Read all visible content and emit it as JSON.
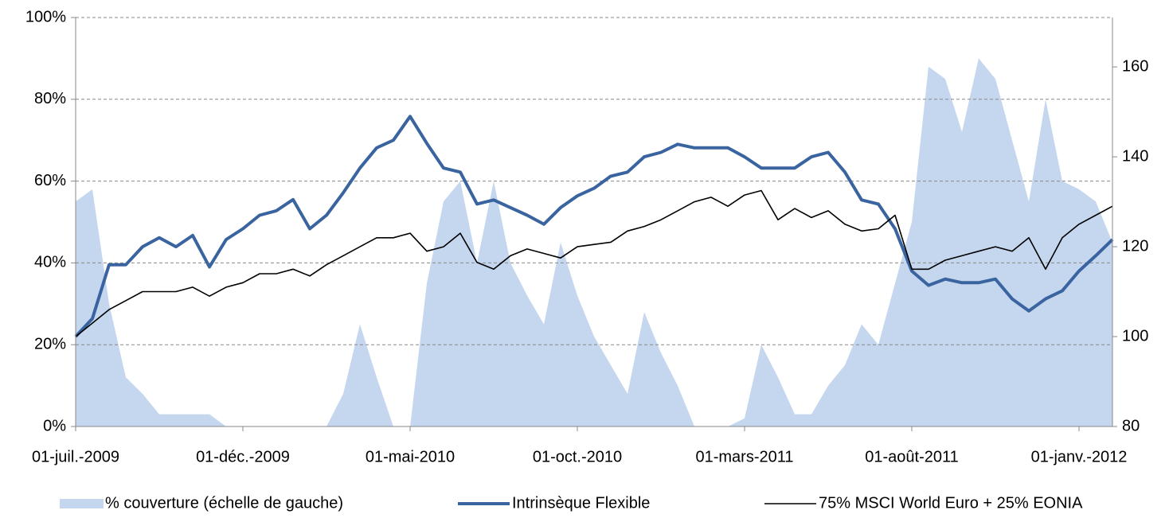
{
  "chart_data": {
    "type": "area-line",
    "categories": [
      "01-juil.-2009",
      null,
      null,
      null,
      null,
      null,
      null,
      null,
      null,
      null,
      "01-déc.-2009",
      null,
      null,
      null,
      null,
      null,
      null,
      null,
      null,
      null,
      "01-mai-2010",
      null,
      null,
      null,
      null,
      null,
      null,
      null,
      null,
      null,
      "01-oct.-2010",
      null,
      null,
      null,
      null,
      null,
      null,
      null,
      null,
      null,
      "01-mars-2011",
      null,
      null,
      null,
      null,
      null,
      null,
      null,
      null,
      null,
      "01-août-2011",
      null,
      null,
      null,
      null,
      null,
      null,
      null,
      null,
      null,
      "01-janv.-2012",
      null,
      null
    ],
    "series": [
      {
        "name": "% couverture (échelle de gauche)",
        "color": "#c5d7ef",
        "kind": "area",
        "values": [
          55,
          58,
          30,
          12,
          8,
          3,
          3,
          3,
          3,
          0,
          0,
          0,
          0,
          0,
          0,
          0,
          8,
          25,
          12,
          0,
          0,
          35,
          55,
          60,
          40,
          60,
          40,
          32,
          25,
          45,
          32,
          22,
          15,
          8,
          28,
          18,
          10,
          0,
          0,
          0,
          2,
          20,
          12,
          3,
          3,
          10,
          15,
          25,
          20,
          35,
          50,
          88,
          85,
          72,
          90,
          85,
          70,
          55,
          80,
          60,
          58,
          55,
          45
        ]
      },
      {
        "name": "Intrinsèque Flexible",
        "color": "#3a64a0",
        "kind": "line",
        "axis": "y2",
        "values": [
          100,
          104,
          116,
          116,
          120,
          122,
          120,
          122.5,
          115.5,
          121.6,
          124,
          127,
          128,
          130.5,
          124,
          127,
          132,
          137.5,
          142,
          143.7,
          149,
          143,
          137.5,
          136.6,
          129.5,
          130.4,
          128.7,
          127,
          125,
          128.7,
          131.3,
          133,
          135.7,
          136.6,
          140,
          141,
          142.8,
          142,
          142,
          142,
          140,
          137.5,
          137.5,
          137.5,
          140,
          141,
          136.6,
          130.4,
          129.5,
          124,
          114.6,
          111.4,
          112.8,
          112,
          112,
          112.8,
          108.4,
          105.7,
          108.4,
          110.2,
          114.6,
          118,
          121.6
        ]
      },
      {
        "name": "75% MSCI World Euro + 25% EONIA",
        "color": "#000000",
        "kind": "line",
        "axis": "y2",
        "values": [
          100,
          103,
          106,
          108,
          110,
          110,
          110,
          111,
          109,
          111,
          112,
          114,
          114,
          115,
          113.5,
          116,
          118,
          120,
          122,
          122,
          123,
          119,
          120,
          123,
          116.5,
          115,
          118,
          119.5,
          118.5,
          117.5,
          120,
          120.5,
          121,
          123.5,
          124.5,
          126,
          128,
          130,
          131,
          129,
          131.5,
          132.5,
          126,
          128.5,
          126.5,
          128,
          125,
          123.5,
          124,
          127,
          115,
          115,
          117,
          118,
          119,
          120,
          119,
          122,
          115,
          122,
          125,
          127,
          129
        ]
      }
    ],
    "ylim": [
      0,
      100
    ],
    "yticks": [
      {
        "value": 0,
        "label": "0%"
      },
      {
        "value": 20,
        "label": "20%"
      },
      {
        "value": 40,
        "label": "40%"
      },
      {
        "value": 60,
        "label": "60%"
      },
      {
        "value": 80,
        "label": "80%"
      },
      {
        "value": 100,
        "label": "100%"
      }
    ],
    "y2lim": [
      80,
      171
    ],
    "y2ticks": [
      80,
      100,
      120,
      140,
      160
    ],
    "grid": true
  }
}
